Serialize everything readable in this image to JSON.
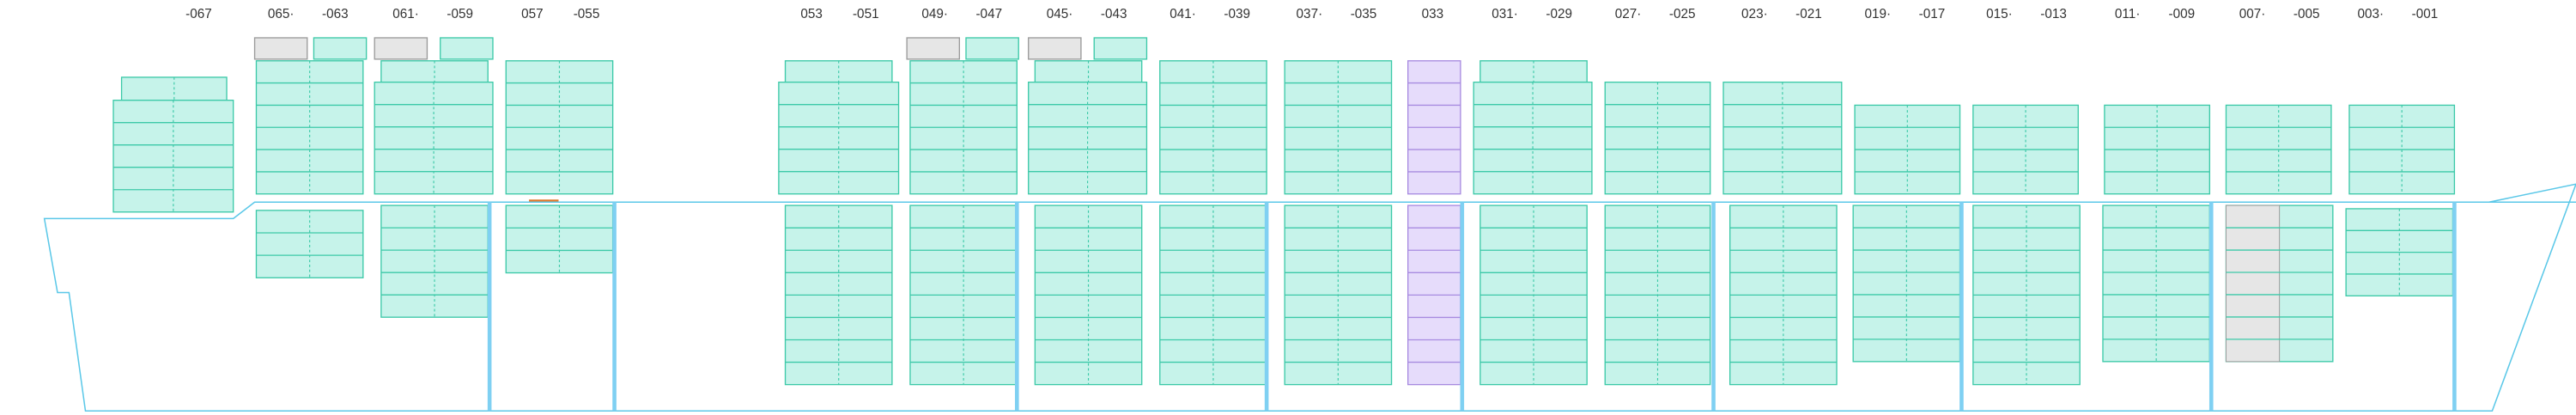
{
  "bay_labels": [
    "-067",
    "065·",
    "-063",
    "061·",
    "-059",
    "057",
    "-055",
    "053",
    "-051",
    "049·",
    "-047",
    "045·",
    "-043",
    "041·",
    "-039",
    "037·",
    "-035",
    "033",
    "031·",
    "-029",
    "027·",
    "-025",
    "023·",
    "-021",
    "019·",
    "-017",
    "015·",
    "-013",
    "011·",
    "-009",
    "007·",
    "-005",
    "003·",
    "-001"
  ]
}
